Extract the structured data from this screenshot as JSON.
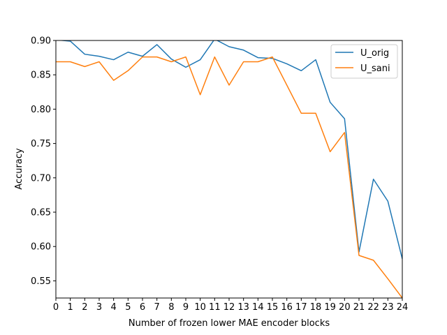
{
  "chart_data": {
    "type": "line",
    "title": "",
    "xlabel": "Number of frozen lower MAE encoder blocks",
    "ylabel": "Accuracy",
    "x": [
      0,
      1,
      2,
      3,
      4,
      5,
      6,
      7,
      8,
      9,
      10,
      11,
      12,
      13,
      14,
      15,
      16,
      17,
      18,
      19,
      20,
      21,
      22,
      23,
      24
    ],
    "xlim": [
      0,
      24
    ],
    "ylim": [
      0.525,
      0.9
    ],
    "yticks": [
      0.55,
      0.6,
      0.65,
      0.7,
      0.75,
      0.8,
      0.85,
      0.9
    ],
    "ytick_labels": [
      "0.55",
      "0.60",
      "0.65",
      "0.70",
      "0.75",
      "0.80",
      "0.85",
      "0.90"
    ],
    "grid": false,
    "legend": "top-right",
    "series": [
      {
        "name": "U_orig",
        "color": "#1f77b4",
        "values": [
          0.901,
          0.899,
          0.88,
          0.877,
          0.872,
          0.883,
          0.877,
          0.894,
          0.873,
          0.861,
          0.872,
          0.902,
          0.891,
          0.886,
          0.875,
          0.874,
          0.866,
          0.856,
          0.872,
          0.81,
          0.786,
          0.592,
          0.698,
          0.666,
          0.582
        ]
      },
      {
        "name": "U_sani",
        "color": "#ff7f0e",
        "values": [
          0.869,
          0.869,
          0.862,
          0.869,
          0.842,
          0.856,
          0.876,
          0.876,
          0.869,
          0.876,
          0.821,
          0.876,
          0.835,
          0.869,
          0.869,
          0.876,
          0.835,
          0.794,
          0.794,
          0.738,
          0.766,
          0.587,
          0.58,
          0.553,
          0.525
        ]
      }
    ]
  }
}
